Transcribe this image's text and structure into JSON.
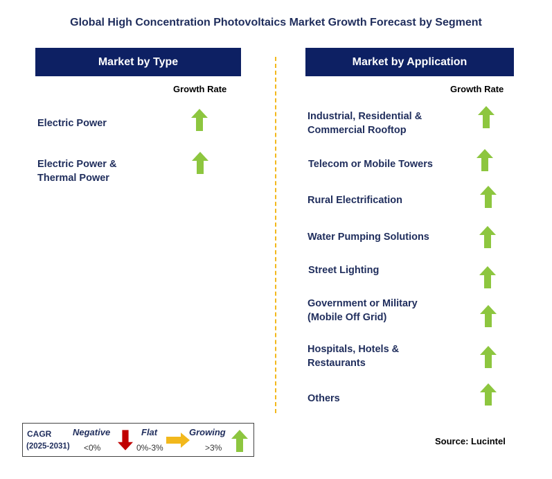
{
  "title": "Global High Concentration Photovoltaics Market Growth Forecast by Segment",
  "left_panel": {
    "header": "Market by Type",
    "growth_label": "Growth Rate",
    "items": [
      {
        "label": "Electric Power",
        "trend": "growing"
      },
      {
        "label": "Electric Power &\nThermal Power",
        "trend": "growing"
      }
    ]
  },
  "right_panel": {
    "header": "Market by Application",
    "growth_label": "Growth Rate",
    "items": [
      {
        "label": "Industrial, Residential &\nCommercial Rooftop",
        "trend": "growing"
      },
      {
        "label": "Telecom or Mobile Towers",
        "trend": "growing"
      },
      {
        "label": "Rural Electrification",
        "trend": "growing"
      },
      {
        "label": "Water Pumping Solutions",
        "trend": "growing"
      },
      {
        "label": "Street Lighting",
        "trend": "growing"
      },
      {
        "label": "Government or Military\n(Mobile Off Grid)",
        "trend": "growing"
      },
      {
        "label": "Hospitals, Hotels &\nRestaurants",
        "trend": "growing"
      },
      {
        "label": "Others",
        "trend": "growing"
      }
    ]
  },
  "legend": {
    "cagr_label": "CAGR",
    "period": "(2025-2031)",
    "negative_label": "Negative",
    "negative_value": "<0%",
    "flat_label": "Flat",
    "flat_value": "0%-3%",
    "growing_label": "Growing",
    "growing_value": ">3%"
  },
  "source": "Source: Lucintel",
  "colors": {
    "header_bg": "#0d2063",
    "text": "#1f2d5c",
    "growing": "#8dc63f",
    "negative": "#c00000",
    "flat": "#f2b81c",
    "divider": "#f2b81c"
  },
  "icons": {
    "growing": "arrow-up-icon",
    "negative": "arrow-down-icon",
    "flat": "arrow-right-icon"
  }
}
